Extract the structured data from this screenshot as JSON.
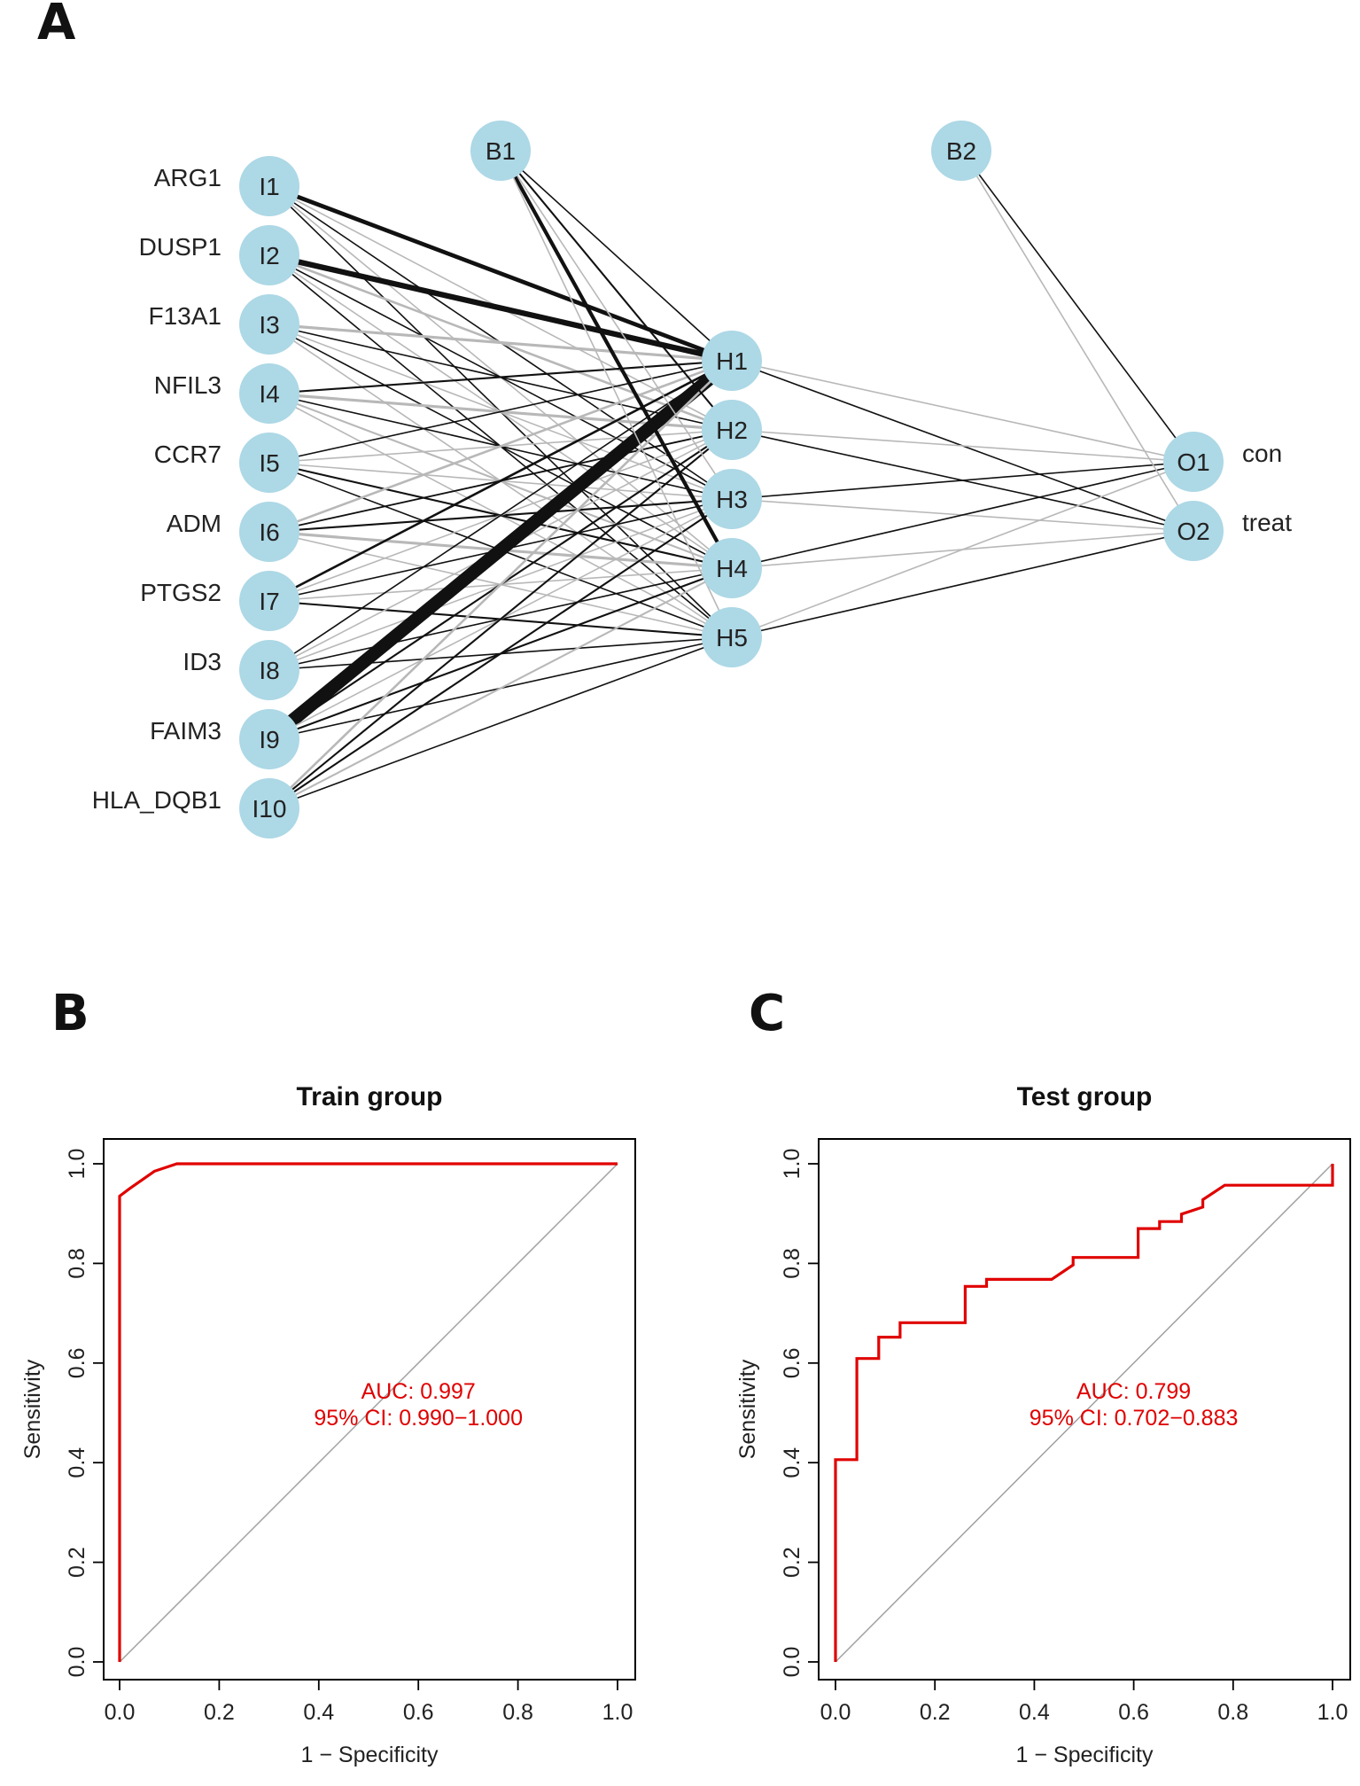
{
  "panels": {
    "a_letter": "A",
    "b_letter": "B",
    "c_letter": "C"
  },
  "network": {
    "input_nodes": [
      "I1",
      "I2",
      "I3",
      "I4",
      "I5",
      "I6",
      "I7",
      "I8",
      "I9",
      "I10"
    ],
    "input_labels": [
      "ARG1",
      "DUSP1",
      "F13A1",
      "NFIL3",
      "CCR7",
      "ADM",
      "PTGS2",
      "ID3",
      "FAIM3",
      "HLA_DQB1"
    ],
    "hidden_nodes": [
      "H1",
      "H2",
      "H3",
      "H4",
      "H5"
    ],
    "bias_nodes": [
      "B1",
      "B2"
    ],
    "output_nodes": [
      "O1",
      "O2"
    ],
    "output_labels": [
      "con",
      "treat"
    ],
    "colors": {
      "node": "#add8e6",
      "positive": "#111111",
      "negative": "#b8b8b8"
    },
    "input_hidden_weights": [
      [
        4.5,
        -1.5,
        1.0,
        -1.2,
        1.0
      ],
      [
        6.0,
        -2.5,
        1.2,
        -1.0,
        1.5
      ],
      [
        -3.0,
        1.5,
        -1.0,
        1.2,
        -1.0
      ],
      [
        2.0,
        -3.0,
        1.5,
        -2.0,
        -1.0
      ],
      [
        1.5,
        -1.2,
        -1.0,
        2.0,
        1.0
      ],
      [
        -2.5,
        1.8,
        2.0,
        -3.0,
        -1.5
      ],
      [
        2.5,
        -1.2,
        1.0,
        -1.0,
        2.0
      ],
      [
        1.5,
        -1.0,
        -1.2,
        1.5,
        1.2
      ],
      [
        14.0,
        2.0,
        -1.5,
        2.0,
        1.5
      ],
      [
        -2.5,
        2.0,
        2.0,
        -2.0,
        1.5
      ]
    ],
    "bias_hidden_weights": [
      1.5,
      2.0,
      -1.0,
      4.0,
      -1.5
    ],
    "hidden_output_weights": [
      [
        -1.0,
        1.5
      ],
      [
        -1.0,
        1.5
      ],
      [
        1.5,
        -1.0
      ],
      [
        1.5,
        -1.0
      ],
      [
        -1.0,
        1.5
      ]
    ],
    "bias_output_weights": [
      1.5,
      -1.0
    ]
  },
  "chart_data": [
    {
      "type": "line",
      "title": "Train group",
      "xlabel": "1 − Specificity",
      "ylabel": "Sensitivity",
      "xlim": [
        0,
        1
      ],
      "ylim": [
        0,
        1
      ],
      "xticks": [
        "0.0",
        "0.2",
        "0.4",
        "0.6",
        "0.8",
        "1.0"
      ],
      "yticks": [
        "0.0",
        "0.2",
        "0.4",
        "0.6",
        "0.8",
        "1.0"
      ],
      "series": [
        {
          "name": "ROC",
          "color": "#e00000",
          "x": [
            0.0,
            0.0,
            0.0,
            0.02,
            0.07,
            0.115,
            0.115,
            1.0
          ],
          "y": [
            0.0,
            0.45,
            0.935,
            0.95,
            0.985,
            1.0,
            1.0,
            1.0
          ]
        }
      ],
      "diagonal": {
        "x": [
          0,
          1
        ],
        "y": [
          0,
          1
        ],
        "color": "#a0a0a0"
      },
      "annotation": {
        "auc": "AUC: 0.997",
        "ci": "95% CI: 0.990−1.000"
      }
    },
    {
      "type": "line",
      "title": "Test group",
      "xlabel": "1 − Specificity",
      "ylabel": "Sensitivity",
      "xlim": [
        0,
        1
      ],
      "ylim": [
        0,
        1
      ],
      "xticks": [
        "0.0",
        "0.2",
        "0.4",
        "0.6",
        "0.8",
        "1.0"
      ],
      "yticks": [
        "0.0",
        "0.2",
        "0.4",
        "0.6",
        "0.8",
        "1.0"
      ],
      "series": [
        {
          "name": "ROC",
          "color": "#e00000",
          "x": [
            0.0,
            0.0,
            0.043,
            0.043,
            0.087,
            0.087,
            0.13,
            0.13,
            0.261,
            0.261,
            0.304,
            0.304,
            0.435,
            0.478,
            0.478,
            0.609,
            0.609,
            0.652,
            0.652,
            0.696,
            0.696,
            0.739,
            0.739,
            0.783,
            0.783,
            1.0,
            1.0
          ],
          "y": [
            0.0,
            0.406,
            0.406,
            0.609,
            0.609,
            0.652,
            0.652,
            0.681,
            0.681,
            0.754,
            0.754,
            0.768,
            0.768,
            0.797,
            0.812,
            0.812,
            0.87,
            0.87,
            0.884,
            0.884,
            0.899,
            0.913,
            0.928,
            0.957,
            0.957,
            0.957,
            1.0
          ]
        }
      ],
      "diagonal": {
        "x": [
          0,
          1
        ],
        "y": [
          0,
          1
        ],
        "color": "#a0a0a0"
      },
      "annotation": {
        "auc": "AUC: 0.799",
        "ci": "95% CI: 0.702−0.883"
      }
    }
  ]
}
